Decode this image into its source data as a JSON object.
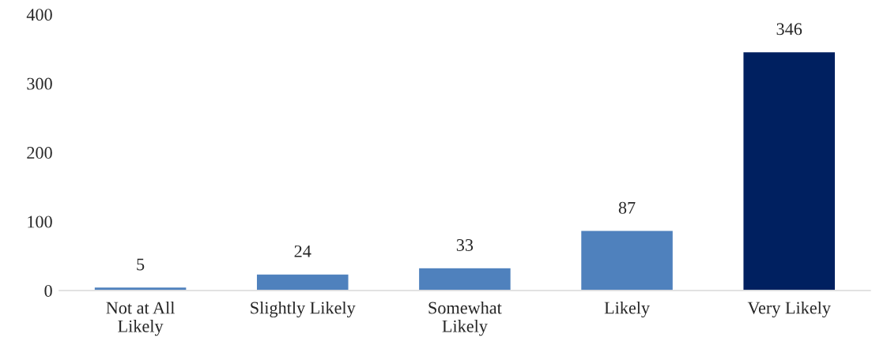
{
  "chart_data": {
    "type": "bar",
    "categories": [
      "Not at All\nLikely",
      "Slightly Likely",
      "Somewhat\nLikely",
      "Likely",
      "Very Likely"
    ],
    "values": [
      5,
      24,
      33,
      87,
      346
    ],
    "colors": [
      "#4f81bd",
      "#4f81bd",
      "#4f81bd",
      "#4f81bd",
      "#002060"
    ],
    "ylim": [
      0,
      400
    ],
    "yticks": [
      0,
      100,
      200,
      300,
      400
    ],
    "grid": false,
    "data_labels": true
  }
}
